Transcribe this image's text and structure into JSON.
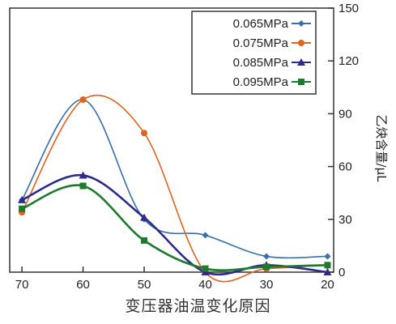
{
  "chart_data": {
    "type": "line",
    "title": "",
    "xlabel": "",
    "ylabel": "乙炔含量/μL",
    "x_reversed": true,
    "x_ticks": [
      "70",
      "60",
      "50",
      "40",
      "30",
      "20"
    ],
    "y_ticks": [
      "0",
      "30",
      "60",
      "90",
      "120",
      "150"
    ],
    "xlim": [
      72,
      19
    ],
    "ylim": [
      0,
      150
    ],
    "grid": false,
    "legend_position": "top-right",
    "x": [
      70,
      60,
      50,
      40,
      30,
      20
    ],
    "series": [
      {
        "name": "0.065MPa",
        "color": "#3b6ea8",
        "marker": "diamond",
        "values": [
          41,
          98,
          30,
          21,
          9,
          9
        ]
      },
      {
        "name": "0.075MPa",
        "color": "#e0631f",
        "marker": "circle",
        "values": [
          34,
          98,
          79,
          0,
          2,
          4
        ]
      },
      {
        "name": "0.085MPa",
        "color": "#2e2a8c",
        "marker": "triangle",
        "values": [
          41,
          55,
          31,
          0,
          4,
          0
        ]
      },
      {
        "name": "0.095MPa",
        "color": "#1f7a2e",
        "marker": "square",
        "values": [
          36,
          49,
          18,
          2,
          3,
          4
        ]
      }
    ]
  },
  "caption": "变压器油温变化原因"
}
